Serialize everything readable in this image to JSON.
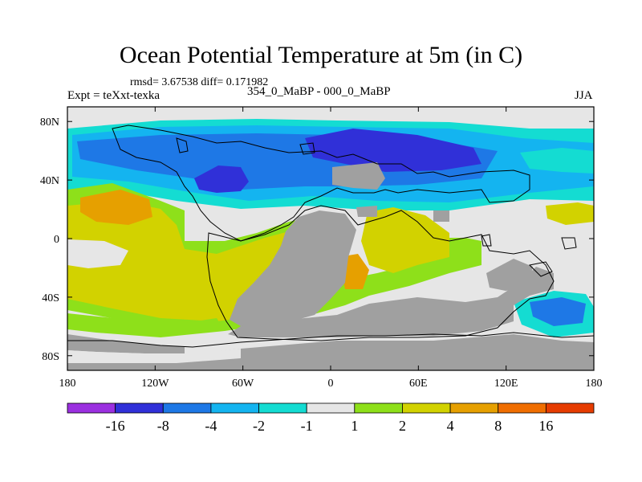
{
  "title": "Ocean Potential Temperature at 5m (in C)",
  "stats": "rmsd= 3.67538 diff= 0.171982",
  "expt": "Expt = teXxt-texka",
  "subtitle": "354_0_MaBP - 000_0_MaBP",
  "season": "JJA",
  "map": {
    "projection": "cylindrical equidistant",
    "lon_range": [
      -180,
      180
    ],
    "lat_range": [
      -90,
      90
    ],
    "x_ticks": [
      {
        "lon": -180,
        "label": "180"
      },
      {
        "lon": -120,
        "label": "120W"
      },
      {
        "lon": -60,
        "label": "60W"
      },
      {
        "lon": 0,
        "label": "0"
      },
      {
        "lon": 60,
        "label": "60E"
      },
      {
        "lon": 120,
        "label": "120E"
      },
      {
        "lon": 180,
        "label": "180"
      }
    ],
    "y_ticks": [
      {
        "lat": 80,
        "label": "80N"
      },
      {
        "lat": 40,
        "label": "40N"
      },
      {
        "lat": 0,
        "label": "0"
      },
      {
        "lat": -40,
        "label": "40S"
      },
      {
        "lat": -80,
        "label": "80S"
      }
    ]
  },
  "colorbar": {
    "labels": [
      "-16",
      "-8",
      "-4",
      "-2",
      "-1",
      "1",
      "2",
      "4",
      "8",
      "16"
    ],
    "colors": [
      "#9b30e0",
      "#3030d8",
      "#1e78e6",
      "#14b4f0",
      "#14dcd2",
      "#e6e6e6",
      "#8ee01a",
      "#d2d200",
      "#e6a000",
      "#f06e00",
      "#e63c00"
    ]
  },
  "colors": {
    "land": "#a0a0a0",
    "neutral": "#e6e6e6",
    "coast": "#000000"
  }
}
